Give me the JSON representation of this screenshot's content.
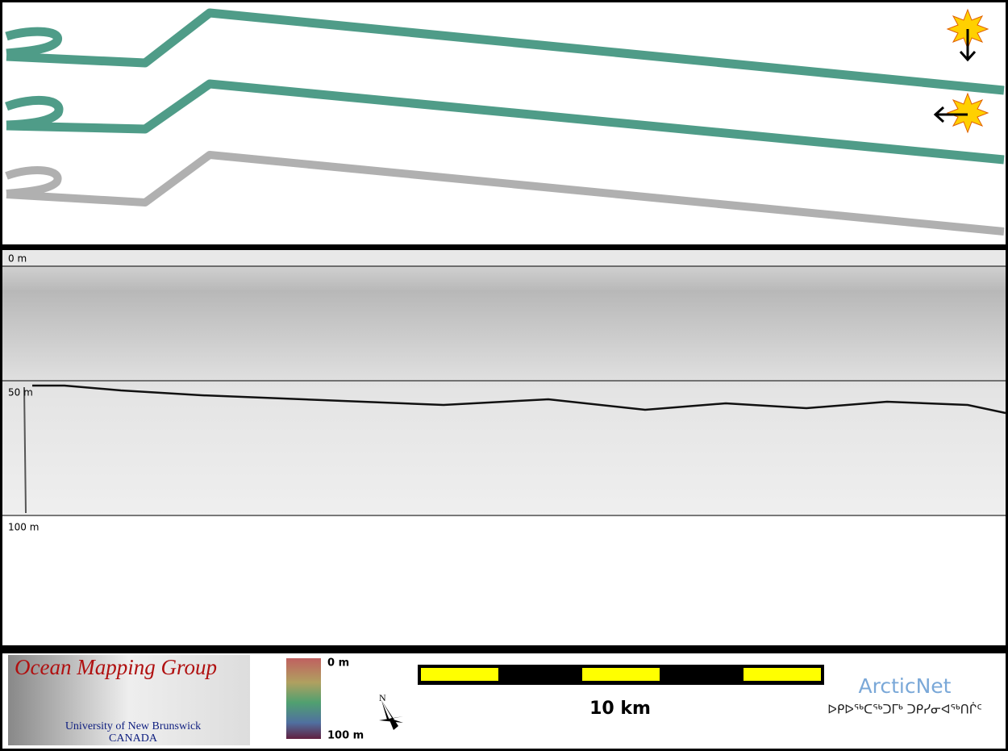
{
  "profile": {
    "depth_labels": [
      "0 m",
      "50 m",
      "100 m"
    ]
  },
  "footer": {
    "logo": {
      "title": "Ocean Mapping Group",
      "university": "University of New Brunswick",
      "country": "CANADA"
    },
    "colorbar": {
      "top_label": "0 m",
      "bottom_label": "100 m"
    },
    "compass": "N",
    "scale_bar": "10 km",
    "arcticnet": {
      "name": "ArcticNet",
      "tagline": "ᐅᑭᐅᖅᑕᖅᑐᒥᒃ ᑐᑭᓯᓂᐊᖅᑎᒌᑦ"
    }
  }
}
